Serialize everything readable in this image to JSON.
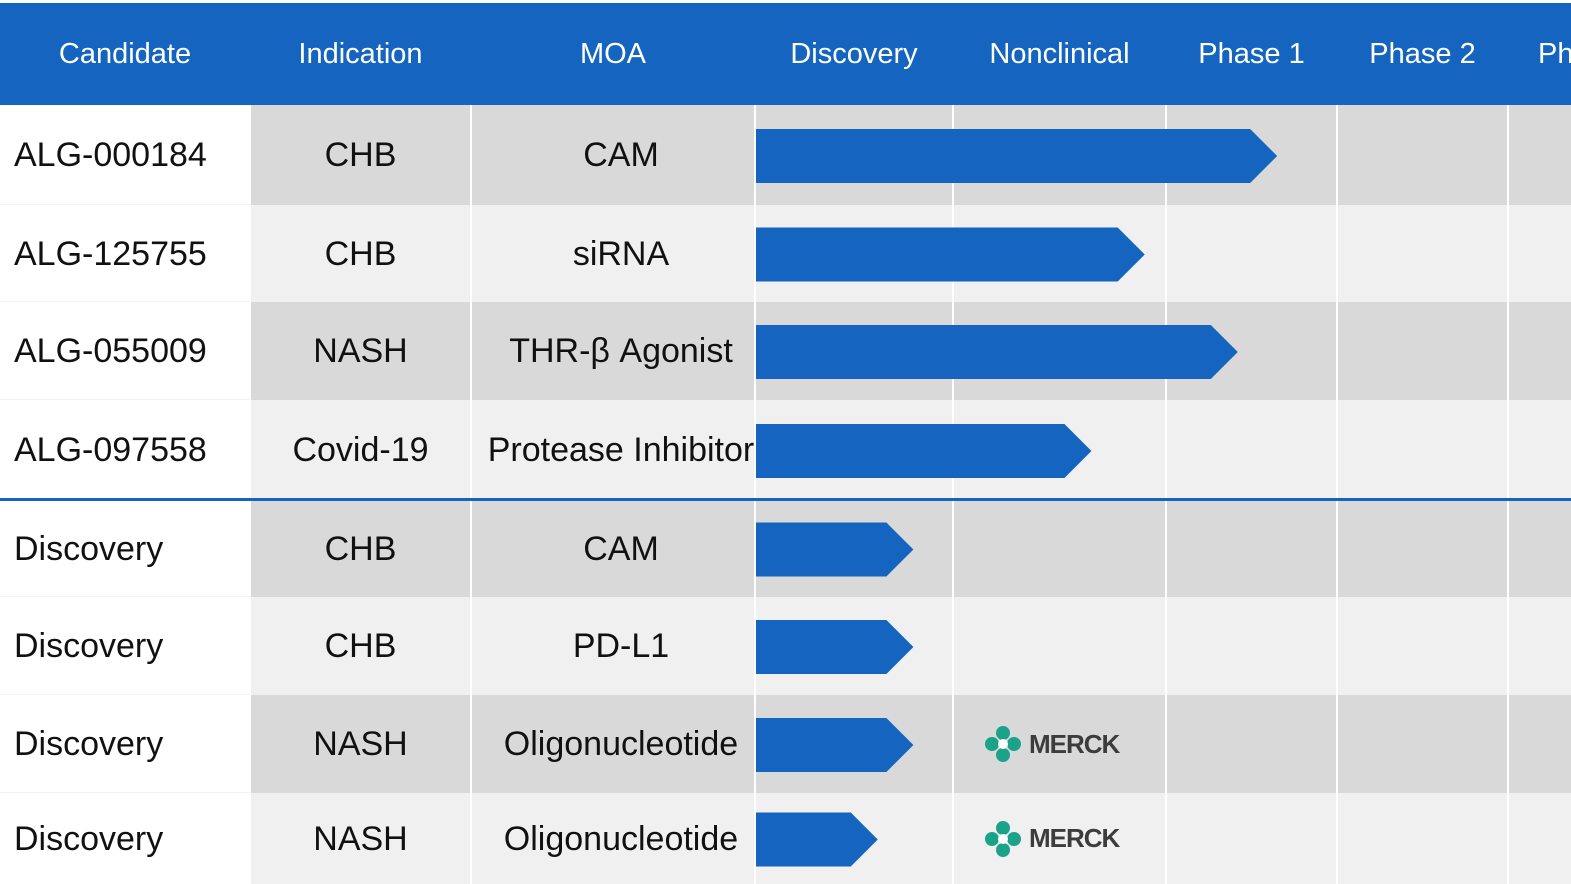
{
  "header": {
    "columns": [
      "Candidate",
      "Indication",
      "MOA",
      "Discovery",
      "Nonclinical",
      "Phase 1",
      "Phase 2",
      "Ph"
    ]
  },
  "colors": {
    "header_bg": "#1565c0",
    "bar": "#1565c0",
    "row_dark": "#d9d9d9",
    "row_light": "#f0f0f0",
    "partner_logo_green": "#1aa389"
  },
  "rows": [
    {
      "candidate": "ALG-000184",
      "indication": "CHB",
      "moa": "CAM",
      "partner": ""
    },
    {
      "candidate": "ALG-125755",
      "indication": "CHB",
      "moa": "siRNA",
      "partner": ""
    },
    {
      "candidate": "ALG-055009",
      "indication": "NASH",
      "moa": "THR-β Agonist",
      "partner": ""
    },
    {
      "candidate": "ALG-097558",
      "indication": "Covid-19",
      "moa": "Protease Inhibitor",
      "partner": ""
    },
    {
      "candidate": "Discovery",
      "indication": "CHB",
      "moa": "CAM",
      "partner": ""
    },
    {
      "candidate": "Discovery",
      "indication": "CHB",
      "moa": "PD-L1",
      "partner": ""
    },
    {
      "candidate": "Discovery",
      "indication": "NASH",
      "moa": "Oligonucleotide",
      "partner": "MERCK"
    },
    {
      "candidate": "Discovery",
      "indication": "NASH",
      "moa": "Oligonucleotide",
      "partner": "MERCK"
    }
  ],
  "chart_data": {
    "type": "bar",
    "orientation": "horizontal",
    "stages": [
      "Discovery",
      "Nonclinical",
      "Phase 1",
      "Phase 2",
      "Ph"
    ],
    "categories": [
      "ALG-000184",
      "ALG-125755",
      "ALG-055009",
      "ALG-097558",
      "Discovery",
      "Discovery",
      "Discovery",
      "Discovery"
    ],
    "values": [
      2.65,
      1.9,
      2.42,
      1.65,
      0.8,
      0.8,
      0.8,
      0.62
    ],
    "value_unit": "stages completed (Discovery = 1 stage)"
  }
}
